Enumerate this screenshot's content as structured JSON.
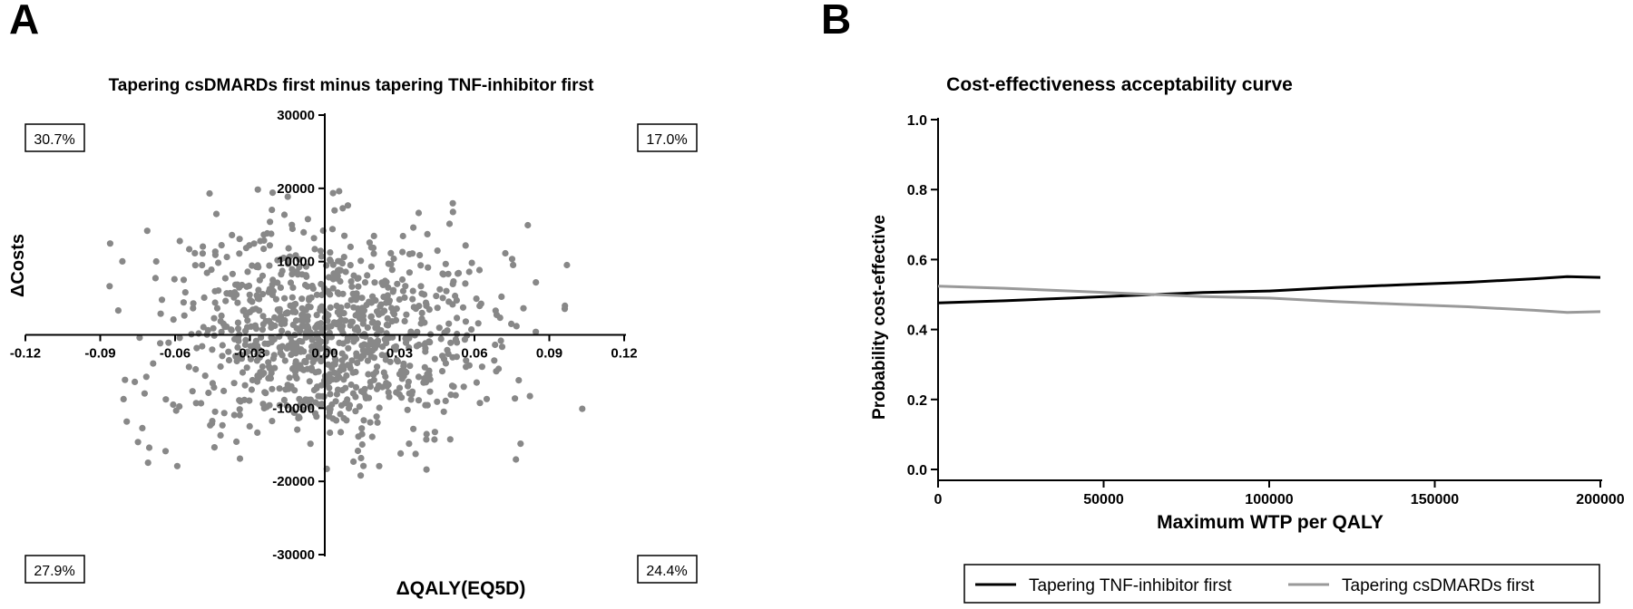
{
  "panels": {
    "a_letter": "A",
    "b_letter": "B"
  },
  "chart_data": [
    {
      "type": "scatter",
      "title": "Tapering csDMARDs first minus tapering TNF-inhibitor first",
      "xlabel": "ΔQALY(EQ5D)",
      "ylabel": "ΔCosts",
      "xlim": [
        -0.12,
        0.12
      ],
      "ylim": [
        -30000,
        30000
      ],
      "x_ticks": [
        "-0.12",
        "-0.09",
        "-0.06",
        "-0.03",
        "0.00",
        "0.03",
        "0.06",
        "0.09",
        "0.12"
      ],
      "y_ticks": [
        "-30000",
        "-20000",
        "-10000",
        "0",
        "10000",
        "20000",
        "30000"
      ],
      "quadrant_labels": {
        "top_left": "30.7%",
        "top_right": "17.0%",
        "bottom_left": "27.9%",
        "bottom_right": "24.4%"
      },
      "point_color": "#888888",
      "n_points": 1000,
      "x_sd": 0.033,
      "y_sd": 7400
    },
    {
      "type": "line",
      "title": "Cost-effectiveness acceptability curve",
      "xlabel": "Maximum WTP per QALY",
      "ylabel": "Probability cost-effective",
      "xlim": [
        0,
        200000
      ],
      "ylim": [
        0,
        1
      ],
      "x_ticks": [
        "0",
        "50000",
        "100000",
        "150000",
        "200000"
      ],
      "y_ticks": [
        "0.0",
        "0.2",
        "0.4",
        "0.6",
        "0.8",
        "1.0"
      ],
      "legend_position": "bottom",
      "series": [
        {
          "name": "Tapering TNF-inhibitor first",
          "color": "#000000",
          "x": [
            0,
            20000,
            40000,
            60000,
            80000,
            100000,
            120000,
            140000,
            160000,
            180000,
            190000,
            200000
          ],
          "y": [
            0.476,
            0.482,
            0.49,
            0.498,
            0.506,
            0.51,
            0.52,
            0.528,
            0.535,
            0.545,
            0.551,
            0.549
          ]
        },
        {
          "name": "Tapering csDMARDs first",
          "color": "#999999",
          "x": [
            0,
            20000,
            40000,
            60000,
            80000,
            100000,
            120000,
            140000,
            160000,
            180000,
            190000,
            200000
          ],
          "y": [
            0.524,
            0.518,
            0.51,
            0.502,
            0.494,
            0.49,
            0.48,
            0.472,
            0.465,
            0.455,
            0.449,
            0.451
          ]
        }
      ]
    }
  ]
}
